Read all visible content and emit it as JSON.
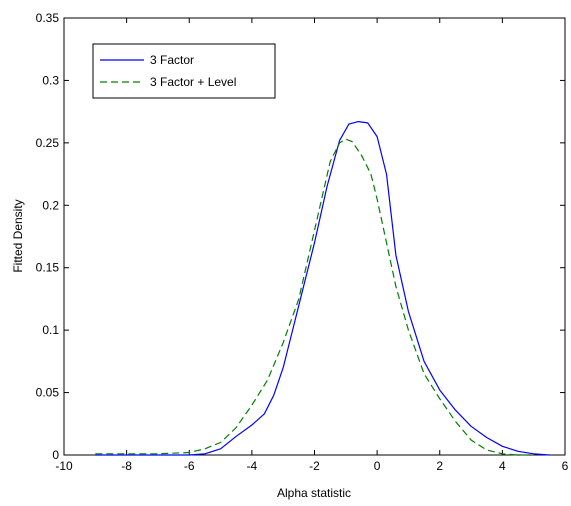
{
  "chart_data": {
    "type": "line",
    "title": "",
    "xlabel": "Alpha statistic",
    "ylabel": "Fitted Density",
    "xlim": [
      -10,
      6
    ],
    "ylim": [
      0,
      0.35
    ],
    "x_ticks": [
      -10,
      -8,
      -6,
      -4,
      -2,
      0,
      2,
      4,
      6
    ],
    "y_ticks": [
      0,
      0.05,
      0.1,
      0.15,
      0.2,
      0.25,
      0.3,
      0.35
    ],
    "x_tick_labels": [
      "-10",
      "-8",
      "-6",
      "-4",
      "-2",
      "0",
      "2",
      "4",
      "6"
    ],
    "y_tick_labels": [
      "0",
      "0.05",
      "0.1",
      "0.15",
      "0.2",
      "0.25",
      "0.3",
      "0.35"
    ],
    "grid": false,
    "legend_position": "top-left",
    "series": [
      {
        "name": "3 Factor",
        "color": "#0000ff",
        "style": "solid",
        "x": [
          -9.0,
          -8.0,
          -7.0,
          -6.0,
          -5.5,
          -5.0,
          -4.5,
          -4.0,
          -3.6,
          -3.3,
          -3.0,
          -2.7,
          -2.4,
          -2.0,
          -1.6,
          -1.2,
          -0.9,
          -0.6,
          -0.3,
          0.0,
          0.3,
          0.6,
          1.0,
          1.5,
          2.0,
          2.5,
          3.0,
          3.5,
          4.0,
          4.5,
          5.0,
          5.5
        ],
        "y": [
          0.0,
          0.0,
          0.0,
          0.0,
          0.001,
          0.005,
          0.015,
          0.024,
          0.033,
          0.048,
          0.07,
          0.1,
          0.13,
          0.17,
          0.215,
          0.252,
          0.265,
          0.267,
          0.266,
          0.255,
          0.225,
          0.16,
          0.115,
          0.075,
          0.052,
          0.036,
          0.023,
          0.014,
          0.007,
          0.003,
          0.001,
          0.0
        ]
      },
      {
        "name": "3 Factor + Level",
        "color": "#008000",
        "style": "dashed",
        "x": [
          -9.0,
          -8.0,
          -7.0,
          -6.0,
          -5.5,
          -5.0,
          -4.5,
          -4.0,
          -3.5,
          -3.0,
          -2.5,
          -2.0,
          -1.5,
          -1.2,
          -1.0,
          -0.8,
          -0.5,
          -0.2,
          0.0,
          0.3,
          0.6,
          1.0,
          1.5,
          2.0,
          2.5,
          3.0,
          3.5,
          4.0,
          4.5,
          5.0
        ],
        "y": [
          0.001,
          0.001,
          0.001,
          0.002,
          0.005,
          0.01,
          0.022,
          0.04,
          0.06,
          0.09,
          0.125,
          0.18,
          0.235,
          0.25,
          0.253,
          0.251,
          0.24,
          0.225,
          0.205,
          0.17,
          0.135,
          0.1,
          0.065,
          0.045,
          0.027,
          0.012,
          0.004,
          0.001,
          0.0,
          0.0
        ]
      }
    ]
  }
}
